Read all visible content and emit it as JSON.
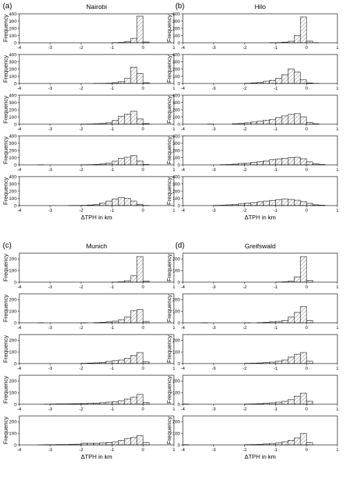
{
  "chart_data": [
    {
      "type": "bar",
      "panel": "(a)",
      "title": "Nairobi",
      "xlabel": "ΔTPH in km",
      "ylabel": "Frequency",
      "xlim": [
        -4,
        1
      ],
      "ylim": [
        0,
        400
      ],
      "yticks": [
        0,
        100,
        200,
        300,
        400
      ],
      "xticks": [
        -4,
        -3,
        -2,
        -1,
        0,
        1
      ],
      "bin_width": 0.2,
      "subplots": [
        {
          "bins": [
            -1.2,
            -1.0,
            -0.8,
            -0.6,
            -0.4,
            -0.2,
            0.0
          ],
          "values": [
            0,
            2,
            5,
            15,
            60,
            370,
            10
          ]
        },
        {
          "bins": [
            -1.6,
            -1.4,
            -1.2,
            -1.0,
            -0.8,
            -0.6,
            -0.4,
            -0.2,
            0.0
          ],
          "values": [
            1,
            2,
            4,
            10,
            25,
            70,
            225,
            140,
            10
          ]
        },
        {
          "bins": [
            -2.0,
            -1.8,
            -1.6,
            -1.4,
            -1.2,
            -1.0,
            -0.8,
            -0.6,
            -0.4,
            -0.2,
            0.0
          ],
          "values": [
            2,
            3,
            5,
            10,
            20,
            50,
            110,
            140,
            180,
            75,
            8
          ]
        },
        {
          "bins": [
            -3.4,
            -2.0,
            -1.8,
            -1.6,
            -1.4,
            -1.2,
            -1.0,
            -0.8,
            -0.6,
            -0.4,
            -0.2,
            0.0
          ],
          "values": [
            1,
            2,
            3,
            6,
            12,
            25,
            50,
            90,
            105,
            130,
            55,
            5
          ]
        },
        {
          "bins": [
            -2.4,
            -2.2,
            -2.0,
            -1.8,
            -1.6,
            -1.4,
            -1.2,
            -1.0,
            -0.8,
            -0.6,
            -0.4,
            -0.2,
            0.0
          ],
          "values": [
            1,
            2,
            3,
            8,
            15,
            35,
            60,
            90,
            110,
            100,
            60,
            15,
            2
          ]
        }
      ]
    },
    {
      "type": "bar",
      "panel": "(b)",
      "title": "Hilo",
      "xlabel": "ΔTPH in km",
      "ylabel": "Frequency",
      "xlim": [
        -4,
        1
      ],
      "ylim": [
        0,
        400
      ],
      "yticks": [
        0,
        100,
        200,
        300,
        400
      ],
      "xticks": [
        -4,
        -3,
        -2,
        -1,
        0,
        1
      ],
      "bin_width": 0.2,
      "subplots": [
        {
          "bins": [
            -1.2,
            -1.0,
            -0.8,
            -0.6,
            -0.4,
            -0.2,
            0.0,
            0.2
          ],
          "values": [
            2,
            3,
            8,
            20,
            100,
            355,
            25,
            2
          ]
        },
        {
          "bins": [
            -2.0,
            -1.8,
            -1.6,
            -1.4,
            -1.2,
            -1.0,
            -0.8,
            -0.6,
            -0.4,
            -0.2,
            0.0,
            0.2
          ],
          "values": [
            3,
            8,
            15,
            30,
            45,
            70,
            120,
            200,
            160,
            50,
            8,
            2
          ]
        },
        {
          "bins": [
            -3.2,
            -2.4,
            -2.2,
            -2.0,
            -1.8,
            -1.6,
            -1.4,
            -1.2,
            -1.0,
            -0.8,
            -0.6,
            -0.4,
            -0.2,
            0.0,
            0.2
          ],
          "values": [
            2,
            5,
            10,
            20,
            30,
            40,
            55,
            65,
            90,
            115,
            135,
            145,
            100,
            25,
            5
          ]
        },
        {
          "bins": [
            -2.8,
            -2.6,
            -2.4,
            -2.2,
            -2.0,
            -1.8,
            -1.6,
            -1.4,
            -1.2,
            -1.0,
            -0.8,
            -0.6,
            -0.4,
            -0.2,
            0.0,
            0.2,
            0.4
          ],
          "values": [
            3,
            5,
            10,
            20,
            25,
            35,
            45,
            55,
            70,
            80,
            90,
            100,
            105,
            85,
            40,
            15,
            5
          ]
        },
        {
          "bins": [
            -3.0,
            -2.8,
            -2.6,
            -2.4,
            -2.2,
            -2.0,
            -1.8,
            -1.6,
            -1.4,
            -1.2,
            -1.0,
            -0.8,
            -0.6,
            -0.4,
            -0.2,
            0.0,
            0.2,
            0.4
          ],
          "values": [
            3,
            5,
            10,
            15,
            25,
            35,
            40,
            50,
            60,
            70,
            80,
            90,
            85,
            75,
            55,
            30,
            10,
            5
          ]
        }
      ]
    },
    {
      "type": "bar",
      "panel": "(c)",
      "title": "Munich",
      "xlabel": "ΔTPH in km",
      "ylabel": "Frequency",
      "xlim": [
        -4,
        1
      ],
      "ylim": [
        0,
        250
      ],
      "yticks": [
        0,
        100,
        200
      ],
      "xticks": [
        -4,
        -3,
        -2,
        -1,
        0,
        1
      ],
      "bin_width": 0.2,
      "subplots": [
        {
          "bins": [
            -1.0,
            -0.8,
            -0.6,
            -0.4,
            -0.2,
            0.0
          ],
          "values": [
            1,
            3,
            12,
            55,
            220,
            10
          ]
        },
        {
          "bins": [
            -3.4,
            -2.0,
            -1.6,
            -1.4,
            -1.2,
            -1.0,
            -0.8,
            -0.6,
            -0.4,
            -0.2,
            0.0
          ],
          "values": [
            1,
            1,
            2,
            4,
            8,
            15,
            25,
            50,
            105,
            115,
            12
          ]
        },
        {
          "bins": [
            -2.0,
            -1.8,
            -1.6,
            -1.4,
            -1.2,
            -1.0,
            -0.8,
            -0.6,
            -0.4,
            -0.2,
            0.0
          ],
          "values": [
            2,
            4,
            6,
            10,
            18,
            25,
            30,
            45,
            70,
            95,
            15
          ]
        },
        {
          "bins": [
            -3.2,
            -3.0,
            -2.8,
            -2.6,
            -2.4,
            -2.2,
            -2.0,
            -1.8,
            -1.6,
            -1.4,
            -1.2,
            -1.0,
            -0.8,
            -0.6,
            -0.4,
            -0.2,
            0.0
          ],
          "values": [
            1,
            2,
            3,
            3,
            4,
            5,
            6,
            8,
            10,
            13,
            18,
            22,
            30,
            45,
            60,
            85,
            15
          ]
        },
        {
          "bins": [
            -3.4,
            -3.2,
            -3.0,
            -2.8,
            -2.6,
            -2.4,
            -2.2,
            -2.0,
            -1.8,
            -1.6,
            -1.4,
            -1.2,
            -1.0,
            -0.8,
            -0.6,
            -0.4,
            -0.2,
            0.0
          ],
          "values": [
            1,
            2,
            2,
            3,
            3,
            5,
            6,
            15,
            15,
            15,
            18,
            22,
            25,
            40,
            55,
            65,
            80,
            20
          ]
        }
      ]
    },
    {
      "type": "bar",
      "panel": "(d)",
      "title": "Greifswald",
      "xlabel": "ΔTPH in km",
      "ylabel": "Frequency",
      "xlim": [
        -4,
        1
      ],
      "ylim": [
        0,
        250
      ],
      "yticks": [
        0,
        100,
        200
      ],
      "xticks": [
        -4,
        -3,
        -2,
        -1,
        0,
        1
      ],
      "bin_width": 0.2,
      "subplots": [
        {
          "bins": [
            -1.0,
            -0.8,
            -0.6,
            -0.4,
            -0.2,
            0.0
          ],
          "values": [
            1,
            3,
            8,
            45,
            220,
            15
          ]
        },
        {
          "bins": [
            -3.4,
            -2.0,
            -1.6,
            -1.4,
            -1.2,
            -1.0,
            -0.8,
            -0.6,
            -0.4,
            -0.2,
            0.0
          ],
          "values": [
            1,
            1,
            2,
            4,
            8,
            12,
            20,
            50,
            90,
            140,
            20
          ]
        },
        {
          "bins": [
            -2.0,
            -1.8,
            -1.6,
            -1.4,
            -1.2,
            -1.0,
            -0.8,
            -0.6,
            -0.4,
            -0.2,
            0.0
          ],
          "values": [
            2,
            3,
            5,
            8,
            12,
            20,
            30,
            55,
            80,
            95,
            20
          ]
        },
        {
          "bins": [
            -4.0,
            -2.0,
            -1.8,
            -1.6,
            -1.4,
            -1.2,
            -1.0,
            -0.8,
            -0.6,
            -0.4,
            -0.2,
            0.0
          ],
          "values": [
            2,
            2,
            3,
            5,
            8,
            12,
            18,
            25,
            40,
            70,
            95,
            25
          ]
        },
        {
          "bins": [
            -4.0,
            -2.0,
            -1.8,
            -1.6,
            -1.4,
            -1.2,
            -1.0,
            -0.8,
            -0.6,
            -0.4,
            -0.2,
            0.0
          ],
          "values": [
            2,
            2,
            3,
            5,
            8,
            12,
            18,
            25,
            40,
            60,
            100,
            20
          ]
        }
      ]
    }
  ]
}
